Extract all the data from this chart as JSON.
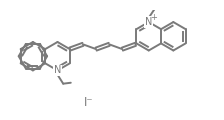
{
  "bg_color": "#ffffff",
  "line_color": "#7a7a7a",
  "text_color": "#7a7a7a",
  "line_width": 1.4,
  "font_size": 7.0,
  "iodide_text": "I⁻",
  "iodide_fontsize": 8.5,
  "figsize": [
    2.24,
    1.2
  ],
  "dpi": 100
}
